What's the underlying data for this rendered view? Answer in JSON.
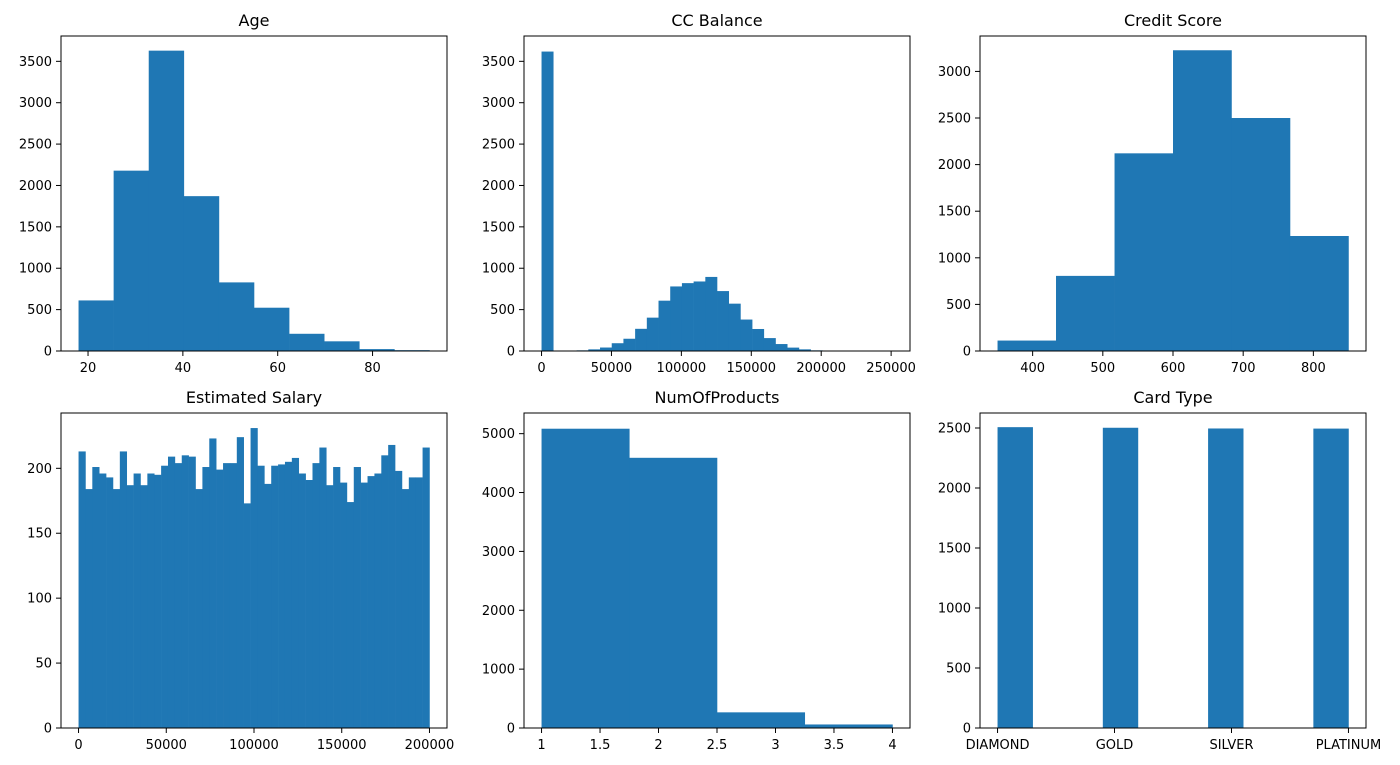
{
  "colors": {
    "bar": "#1f77b4",
    "axis": "#000000",
    "background": "#ffffff"
  },
  "chart_data": [
    {
      "type": "bar",
      "title": "Age",
      "xlim": [
        14.3,
        95.7
      ],
      "ylim": [
        0,
        3806
      ],
      "xticks": [
        20,
        40,
        60,
        80
      ],
      "yticks": [
        0,
        500,
        1000,
        1500,
        2000,
        2500,
        3000,
        3500
      ],
      "bins": [
        {
          "x0": 18,
          "x1": 25.4,
          "value": 611
        },
        {
          "x0": 25.4,
          "x1": 32.8,
          "value": 2179
        },
        {
          "x0": 32.8,
          "x1": 40.2,
          "value": 3629
        },
        {
          "x0": 40.2,
          "x1": 47.6,
          "value": 1871
        },
        {
          "x0": 47.6,
          "x1": 55.0,
          "value": 829
        },
        {
          "x0": 55.0,
          "x1": 62.4,
          "value": 523
        },
        {
          "x0": 62.4,
          "x1": 69.8,
          "value": 208
        },
        {
          "x0": 69.8,
          "x1": 77.2,
          "value": 117
        },
        {
          "x0": 77.2,
          "x1": 84.6,
          "value": 23
        },
        {
          "x0": 84.6,
          "x1": 92.0,
          "value": 10
        }
      ]
    },
    {
      "type": "bar",
      "title": "CC Balance",
      "xlim": [
        -12540,
        263500
      ],
      "ylim": [
        0,
        3806
      ],
      "xticks": [
        0,
        50000,
        100000,
        150000,
        200000,
        250000
      ],
      "yticks": [
        0,
        500,
        1000,
        1500,
        2000,
        2500,
        3000,
        3500
      ],
      "bins": [
        {
          "x0": 0,
          "x1": 8366,
          "value": 3618
        },
        {
          "x0": 8366,
          "x1": 16732,
          "value": 0
        },
        {
          "x0": 16732,
          "x1": 25098,
          "value": 3
        },
        {
          "x0": 25098,
          "x1": 33464,
          "value": 8
        },
        {
          "x0": 33464,
          "x1": 41830,
          "value": 20
        },
        {
          "x0": 41830,
          "x1": 50196,
          "value": 42
        },
        {
          "x0": 50196,
          "x1": 58562,
          "value": 94
        },
        {
          "x0": 58562,
          "x1": 66928,
          "value": 148
        },
        {
          "x0": 66928,
          "x1": 75294,
          "value": 268
        },
        {
          "x0": 75294,
          "x1": 83660,
          "value": 403
        },
        {
          "x0": 83660,
          "x1": 92026,
          "value": 608
        },
        {
          "x0": 92026,
          "x1": 100392,
          "value": 780
        },
        {
          "x0": 100392,
          "x1": 108758,
          "value": 820
        },
        {
          "x0": 108758,
          "x1": 117124,
          "value": 840
        },
        {
          "x0": 117124,
          "x1": 125490,
          "value": 895
        },
        {
          "x0": 125490,
          "x1": 133856,
          "value": 724
        },
        {
          "x0": 133856,
          "x1": 142222,
          "value": 572
        },
        {
          "x0": 142222,
          "x1": 150588,
          "value": 380
        },
        {
          "x0": 150588,
          "x1": 158954,
          "value": 266
        },
        {
          "x0": 158954,
          "x1": 167320,
          "value": 156
        },
        {
          "x0": 167320,
          "x1": 175686,
          "value": 84
        },
        {
          "x0": 175686,
          "x1": 184052,
          "value": 41
        },
        {
          "x0": 184052,
          "x1": 192418,
          "value": 20
        },
        {
          "x0": 192418,
          "x1": 200784,
          "value": 8
        },
        {
          "x0": 200784,
          "x1": 209150,
          "value": 4
        },
        {
          "x0": 209150,
          "x1": 217516,
          "value": 2
        },
        {
          "x0": 217516,
          "x1": 225882,
          "value": 1
        },
        {
          "x0": 225882,
          "x1": 234248,
          "value": 0
        },
        {
          "x0": 234248,
          "x1": 242614,
          "value": 0
        },
        {
          "x0": 242614,
          "x1": 250980,
          "value": 1
        }
      ]
    },
    {
      "type": "bar",
      "title": "Credit Score",
      "xlim": [
        325,
        875
      ],
      "ylim": [
        0,
        3380
      ],
      "xticks": [
        400,
        500,
        600,
        700,
        800
      ],
      "yticks": [
        0,
        500,
        1000,
        1500,
        2000,
        2500,
        3000
      ],
      "bins": [
        {
          "x0": 350,
          "x1": 433.3,
          "value": 112
        },
        {
          "x0": 433.3,
          "x1": 516.7,
          "value": 806
        },
        {
          "x0": 516.7,
          "x1": 600,
          "value": 2121
        },
        {
          "x0": 600,
          "x1": 683.3,
          "value": 3227
        },
        {
          "x0": 683.3,
          "x1": 766.7,
          "value": 2500
        },
        {
          "x0": 766.7,
          "x1": 850,
          "value": 1234
        }
      ]
    },
    {
      "type": "bar",
      "title": "Estimated Salary",
      "xlim": [
        -9989,
        209989
      ],
      "ylim": [
        0,
        242.6
      ],
      "xticks": [
        0,
        50000,
        100000,
        150000,
        200000
      ],
      "yticks": [
        0,
        50,
        100,
        150,
        200
      ],
      "bin_range": [
        11.58,
        199992.48
      ],
      "values": [
        213,
        184,
        201,
        196,
        193,
        184,
        213,
        187,
        196,
        187,
        196,
        195,
        202,
        209,
        204,
        210,
        209,
        184,
        201,
        223,
        199,
        204,
        204,
        224,
        173,
        231,
        202,
        188,
        202,
        203,
        205,
        208,
        196,
        191,
        204,
        216,
        187,
        201,
        189,
        174,
        201,
        189,
        194,
        196,
        210,
        218,
        198,
        184,
        193,
        193,
        216
      ]
    },
    {
      "type": "bar",
      "title": "NumOfProducts",
      "xlim": [
        0.85,
        4.15
      ],
      "ylim": [
        0,
        5351
      ],
      "xticks": [
        1.0,
        1.5,
        2.0,
        2.5,
        3.0,
        3.5,
        4.0
      ],
      "yticks": [
        0,
        1000,
        2000,
        3000,
        4000,
        5000
      ],
      "bins": [
        {
          "x0": 1.0,
          "x1": 1.75,
          "value": 5084
        },
        {
          "x0": 1.75,
          "x1": 2.5,
          "value": 4590
        },
        {
          "x0": 2.5,
          "x1": 3.25,
          "value": 266
        },
        {
          "x0": 3.25,
          "x1": 4.0,
          "value": 60
        }
      ]
    },
    {
      "type": "bar",
      "title": "Card Type",
      "xlim": [
        -0.15,
        3.15
      ],
      "ylim": [
        0,
        2625
      ],
      "xticks": [
        0,
        1,
        2,
        3
      ],
      "xtick_labels": [
        "DIAMOND",
        "GOLD",
        "SILVER",
        "PLATINUM"
      ],
      "yticks": [
        0,
        500,
        1000,
        1500,
        2000,
        2500
      ],
      "bins": [
        {
          "x0": 0,
          "x1": 0.3,
          "value": 2507
        },
        {
          "x0": 0.3,
          "x1": 0.6,
          "value": 0
        },
        {
          "x0": 0.6,
          "x1": 0.9,
          "value": 0
        },
        {
          "x0": 0.9,
          "x1": 1.2,
          "value": 2502
        },
        {
          "x0": 1.2,
          "x1": 1.5,
          "value": 0
        },
        {
          "x0": 1.5,
          "x1": 1.8,
          "value": 0
        },
        {
          "x0": 1.8,
          "x1": 2.1,
          "value": 2496
        },
        {
          "x0": 2.1,
          "x1": 2.4,
          "value": 0
        },
        {
          "x0": 2.4,
          "x1": 2.7,
          "value": 0
        },
        {
          "x0": 2.7,
          "x1": 3.0,
          "value": 2495
        }
      ]
    }
  ]
}
